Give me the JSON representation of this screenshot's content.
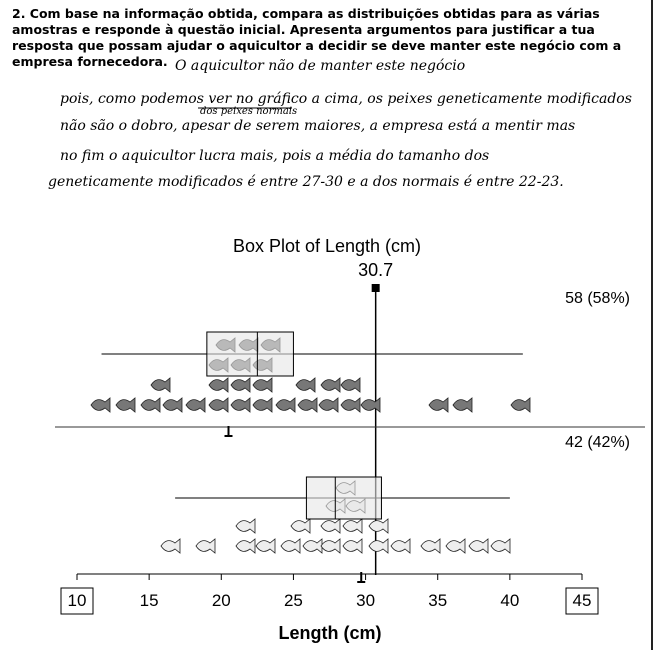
{
  "question": {
    "lines": [
      "2. Com base na informação obtida, compara as distribuições obtidas para as várias",
      "amostras e responde à questão inicial. Apresenta argumentos para justificar a tua",
      "resposta que possam ajudar o aquicultor a decidir se deve manter este negócio com a",
      "empresa fornecedora."
    ]
  },
  "answer": {
    "lines": [
      "O aquicultor não de manter este negócio",
      "pois, como podemos ver no gráfico a cima, os peixes geneticamente modificados",
      "não são o dobro, apesar de serem maiores, a empresa está a mentir mas",
      "no fim o aquicultor lucra mais, pois a média do tamanho dos",
      "geneticamente modificados é entre 27-30 e a dos normais é entre 22-23."
    ],
    "insertion": "dos peixes normais"
  },
  "chart_data": {
    "type": "box",
    "title": "Box Plot of Length (cm)",
    "xlabel": "Length (cm)",
    "xlim": [
      10,
      45
    ],
    "xticks": [
      10,
      15,
      20,
      25,
      30,
      35,
      40,
      45
    ],
    "reference": 30.7,
    "groups": [
      {
        "label": "58 (58%)",
        "whislo": 11.7,
        "q1": 19,
        "med": 22.5,
        "q3": 25,
        "whishi": 40.9,
        "mean": 20.5
      },
      {
        "label": "42 (42%)",
        "whislo": 16.8,
        "q1": 25.9,
        "med": 27.9,
        "q3": 31.1,
        "whishi": 40,
        "mean": 29.7
      }
    ],
    "box_color": "#e6e6e6"
  }
}
